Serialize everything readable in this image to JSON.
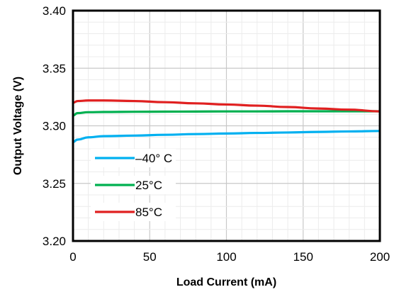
{
  "chart_data": {
    "type": "line",
    "xlabel": "Load Current (mA)",
    "ylabel": "Output Voltage (V)",
    "xlim": [
      0,
      200
    ],
    "ylim": [
      3.2,
      3.4
    ],
    "x_ticks": [
      "0",
      "50",
      "100",
      "150",
      "200"
    ],
    "y_ticks": [
      "3.20",
      "3.25",
      "3.30",
      "3.35",
      "3.40"
    ],
    "x_tick_values": [
      0,
      50,
      100,
      150,
      200
    ],
    "y_tick_values": [
      3.2,
      3.25,
      3.3,
      3.35,
      3.4
    ],
    "x_minor_step": 10,
    "y_minor_step": 0.01,
    "grid": true,
    "legend_position": "bottom-left",
    "series": [
      {
        "name": "–40° C",
        "color": "#00B0F0",
        "x": [
          0,
          3,
          10,
          20,
          40,
          60,
          80,
          100,
          120,
          140,
          160,
          180,
          200
        ],
        "y": [
          3.286,
          3.288,
          3.29,
          3.291,
          3.2915,
          3.2922,
          3.2928,
          3.2933,
          3.2938,
          3.2942,
          3.2947,
          3.2951,
          3.2955
        ]
      },
      {
        "name": "25°C",
        "color": "#00B050",
        "x": [
          0,
          3,
          10,
          20,
          40,
          60,
          80,
          100,
          120,
          140,
          160,
          180,
          200
        ],
        "y": [
          3.309,
          3.311,
          3.3118,
          3.312,
          3.3122,
          3.3123,
          3.3124,
          3.3125,
          3.3125,
          3.3126,
          3.3126,
          3.3126,
          3.3126
        ]
      },
      {
        "name": "85°C",
        "color": "#E02020",
        "x": [
          0,
          3,
          10,
          20,
          40,
          60,
          80,
          100,
          120,
          140,
          160,
          180,
          200
        ],
        "y": [
          3.32,
          3.3215,
          3.322,
          3.322,
          3.3215,
          3.3205,
          3.3195,
          3.3185,
          3.3175,
          3.3163,
          3.315,
          3.314,
          3.3125
        ]
      }
    ]
  }
}
